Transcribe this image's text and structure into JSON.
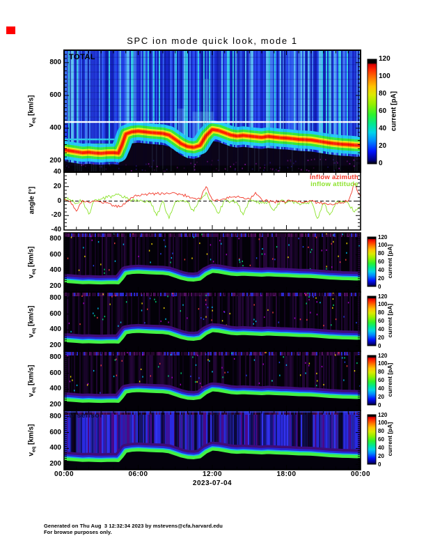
{
  "page": {
    "title": "SPC ion mode quick look, mode 1",
    "date_label": "2023-07-04",
    "footer_line1": "Generated on Thu Aug  3 12:32:34 2023 by mstevens@cfa.harvard.edu",
    "footer_line2": "For browse purposes only.",
    "flag_color": "#ff0000"
  },
  "panels": {
    "total_label": "TOTAL",
    "sensor4_label": "D sensor"
  },
  "legend": {
    "azimuth": {
      "label": "inflow azimuth",
      "color": "#f2392a"
    },
    "attitude": {
      "label": "inflow attitude",
      "color": "#8ce32b"
    }
  },
  "axes": {
    "x_ticks": [
      "00:00",
      "06:00",
      "12:00",
      "18:00",
      "00:00"
    ],
    "x_tick_hours": [
      0,
      6,
      12,
      18,
      24
    ],
    "velocity_axis": {
      "label_v": "v",
      "label_sub": "eq",
      "label_units": " [km/s]",
      "ticks": [
        200,
        400,
        600,
        800
      ],
      "range": [
        132,
        876
      ]
    },
    "angle_axis": {
      "label": "angle [°]",
      "ticks": [
        40,
        20,
        0,
        -20,
        -40
      ],
      "range": [
        -40,
        40
      ]
    },
    "colorbar": {
      "label": "current [pA]",
      "ticks": [
        0,
        20,
        40,
        60,
        80,
        100,
        120
      ],
      "range": [
        0,
        120
      ]
    }
  },
  "palette": {
    "total_bg": [
      "#2343ee",
      "#1b2fd4",
      "#3f78f0",
      "#58b8f2",
      "#1120b0",
      "#35c8e8",
      "#2a55ee",
      "#1626c8"
    ],
    "beam_total": [
      "#22c9f5",
      "#38e838",
      "#eaf01e",
      "#ff9c00",
      "#ff1e00"
    ],
    "sensor_bg": [
      "#160324",
      "#24063a",
      "#0d021a",
      "#1c052e",
      "#2a0740"
    ],
    "beam_sensor": [
      "#3f0c78",
      "#2728d8",
      "#16b4ee",
      "#44f244"
    ],
    "specks": [
      "#ffe000",
      "#00c8ff",
      "#2946ff",
      "#b000d0",
      "#00e080",
      "#ff4040"
    ],
    "d_bg": [
      "#2a2ae0",
      "#2222bb",
      "#3c14a0",
      "#4a0888",
      "#141478",
      "#3333ee",
      "#25259f"
    ],
    "dark_region": "#0b0418",
    "white_line": "#ffffff",
    "colorbar_stops": [
      [
        0,
        "#000000"
      ],
      [
        0.035,
        "#000080"
      ],
      [
        0.12,
        "#0013ff"
      ],
      [
        0.22,
        "#008cff"
      ],
      [
        0.3,
        "#00d4ea"
      ],
      [
        0.38,
        "#00e890"
      ],
      [
        0.47,
        "#2cf22c"
      ],
      [
        0.57,
        "#94f000"
      ],
      [
        0.66,
        "#dcea00"
      ],
      [
        0.74,
        "#ffc200"
      ],
      [
        0.82,
        "#ff7a00"
      ],
      [
        0.9,
        "#ff2a00"
      ],
      [
        0.95,
        "#dc0000"
      ],
      [
        0.965,
        "#000000"
      ],
      [
        1,
        "#000000"
      ]
    ]
  },
  "chart_data": [
    {
      "type": "heatmap",
      "name": "TOTAL",
      "x_axis": {
        "ticks": [
          "00:00",
          "06:00",
          "12:00",
          "18:00",
          "00:00"
        ],
        "range_hours": [
          0,
          24
        ],
        "date": "2023-07-04"
      },
      "y_axis": {
        "label": "v_eq [km/s]",
        "ticks": [
          200,
          400,
          600,
          800
        ],
        "range": [
          132,
          876
        ]
      },
      "colorbar": {
        "label": "current [pA]",
        "ticks": [
          0,
          20,
          40,
          60,
          80,
          100,
          120
        ],
        "range": [
          0,
          120
        ]
      },
      "white_reference_line_v_kms": 438,
      "beam_trace": {
        "x_hours": [
          0,
          0.5,
          1,
          1.5,
          2,
          2.5,
          3,
          3.5,
          4,
          4.4,
          4.7,
          5,
          5.5,
          6,
          6.5,
          7,
          7.5,
          8,
          8.5,
          9,
          9.5,
          10,
          10.5,
          11,
          11.5,
          12,
          12.5,
          13,
          13.5,
          14,
          14.5,
          15,
          15.5,
          16,
          16.5,
          17,
          17.5,
          18,
          18.5,
          19,
          19.5,
          20,
          20.5,
          21,
          21.5,
          22,
          22.5,
          23,
          23.5,
          24
        ],
        "v_kms": [
          268,
          262,
          256,
          250,
          253,
          249,
          247,
          250,
          251,
          248,
          300,
          365,
          378,
          382,
          378,
          374,
          371,
          368,
          358,
          332,
          305,
          288,
          283,
          295,
          355,
          392,
          386,
          372,
          358,
          352,
          356,
          352,
          348,
          344,
          350,
          346,
          342,
          340,
          336,
          332,
          330,
          328,
          322,
          316,
          310,
          306,
          302,
          300,
          297,
          295
        ]
      }
    },
    {
      "type": "line",
      "name": "inflow angles",
      "y_axis": {
        "label": "angle [°]",
        "ticks": [
          40,
          20,
          0,
          -20,
          -40
        ],
        "range": [
          -40,
          40
        ]
      },
      "x_step_hours": 0.5,
      "zero_line": "dashed",
      "series": [
        {
          "name": "inflow azimuth",
          "color": "#f2392a",
          "y_deg": [
            2,
            0,
            -14,
            1,
            -2,
            0,
            -1,
            -2,
            -6,
            -8,
            -2,
            5,
            8,
            9,
            10,
            10,
            11,
            10,
            11,
            9,
            7,
            4,
            3,
            20,
            2,
            1,
            3,
            5,
            6,
            5,
            3,
            12,
            2,
            0,
            -1,
            0,
            -1,
            1,
            0,
            -1,
            0,
            -2,
            -3,
            -4,
            -3,
            -2,
            0,
            24,
            6
          ]
        },
        {
          "name": "inflow attitude",
          "color": "#8ce32b",
          "y_deg": [
            3,
            2,
            -3,
            1,
            -18,
            2,
            3,
            5,
            7,
            8,
            4,
            1,
            0,
            -2,
            -1,
            -20,
            0,
            -24,
            -1,
            0,
            -2,
            -14,
            2,
            12,
            -3,
            -17,
            1,
            0,
            -2,
            -19,
            1,
            0,
            -3,
            -1,
            -13,
            0,
            -2,
            -1,
            -3,
            -2,
            -1,
            -24,
            -3,
            -19,
            -2,
            -1,
            -3,
            -15,
            -8
          ]
        }
      ]
    },
    {
      "type": "heatmap",
      "name": "sensor-1",
      "panel_label": "",
      "y_axis": {
        "label": "v_eq [km/s]",
        "ticks": [
          200,
          400,
          600,
          800
        ],
        "range": [
          132,
          876
        ]
      },
      "colorbar": {
        "label": "current [pA]",
        "ticks": [
          0,
          20,
          40,
          60,
          80,
          100,
          120
        ],
        "range": [
          0,
          120
        ]
      },
      "beam_trace_ref": "TOTAL"
    },
    {
      "type": "heatmap",
      "name": "sensor-2",
      "panel_label": "",
      "y_axis": {
        "label": "v_eq [km/s]",
        "ticks": [
          200,
          400,
          600,
          800
        ],
        "range": [
          132,
          876
        ]
      },
      "colorbar": {
        "label": "current [pA]",
        "ticks": [
          0,
          20,
          40,
          60,
          80,
          100,
          120
        ],
        "range": [
          0,
          120
        ]
      },
      "beam_trace_ref": "TOTAL"
    },
    {
      "type": "heatmap",
      "name": "sensor-3",
      "panel_label": "",
      "y_axis": {
        "label": "v_eq [km/s]",
        "ticks": [
          200,
          400,
          600,
          800
        ],
        "range": [
          132,
          876
        ]
      },
      "colorbar": {
        "label": "current [pA]",
        "ticks": [
          0,
          20,
          40,
          60,
          80,
          100,
          120
        ],
        "range": [
          0,
          120
        ]
      },
      "beam_trace_ref": "TOTAL"
    },
    {
      "type": "heatmap",
      "name": "sensor-4",
      "panel_label": "D sensor",
      "y_axis": {
        "label": "v_eq [km/s]",
        "ticks": [
          200,
          400,
          600,
          800
        ],
        "range": [
          132,
          876
        ]
      },
      "colorbar": {
        "label": "current [pA]",
        "ticks": [
          0,
          20,
          40,
          60,
          80,
          100,
          120
        ],
        "range": [
          0,
          120
        ]
      },
      "beam_trace_ref": "TOTAL"
    }
  ]
}
